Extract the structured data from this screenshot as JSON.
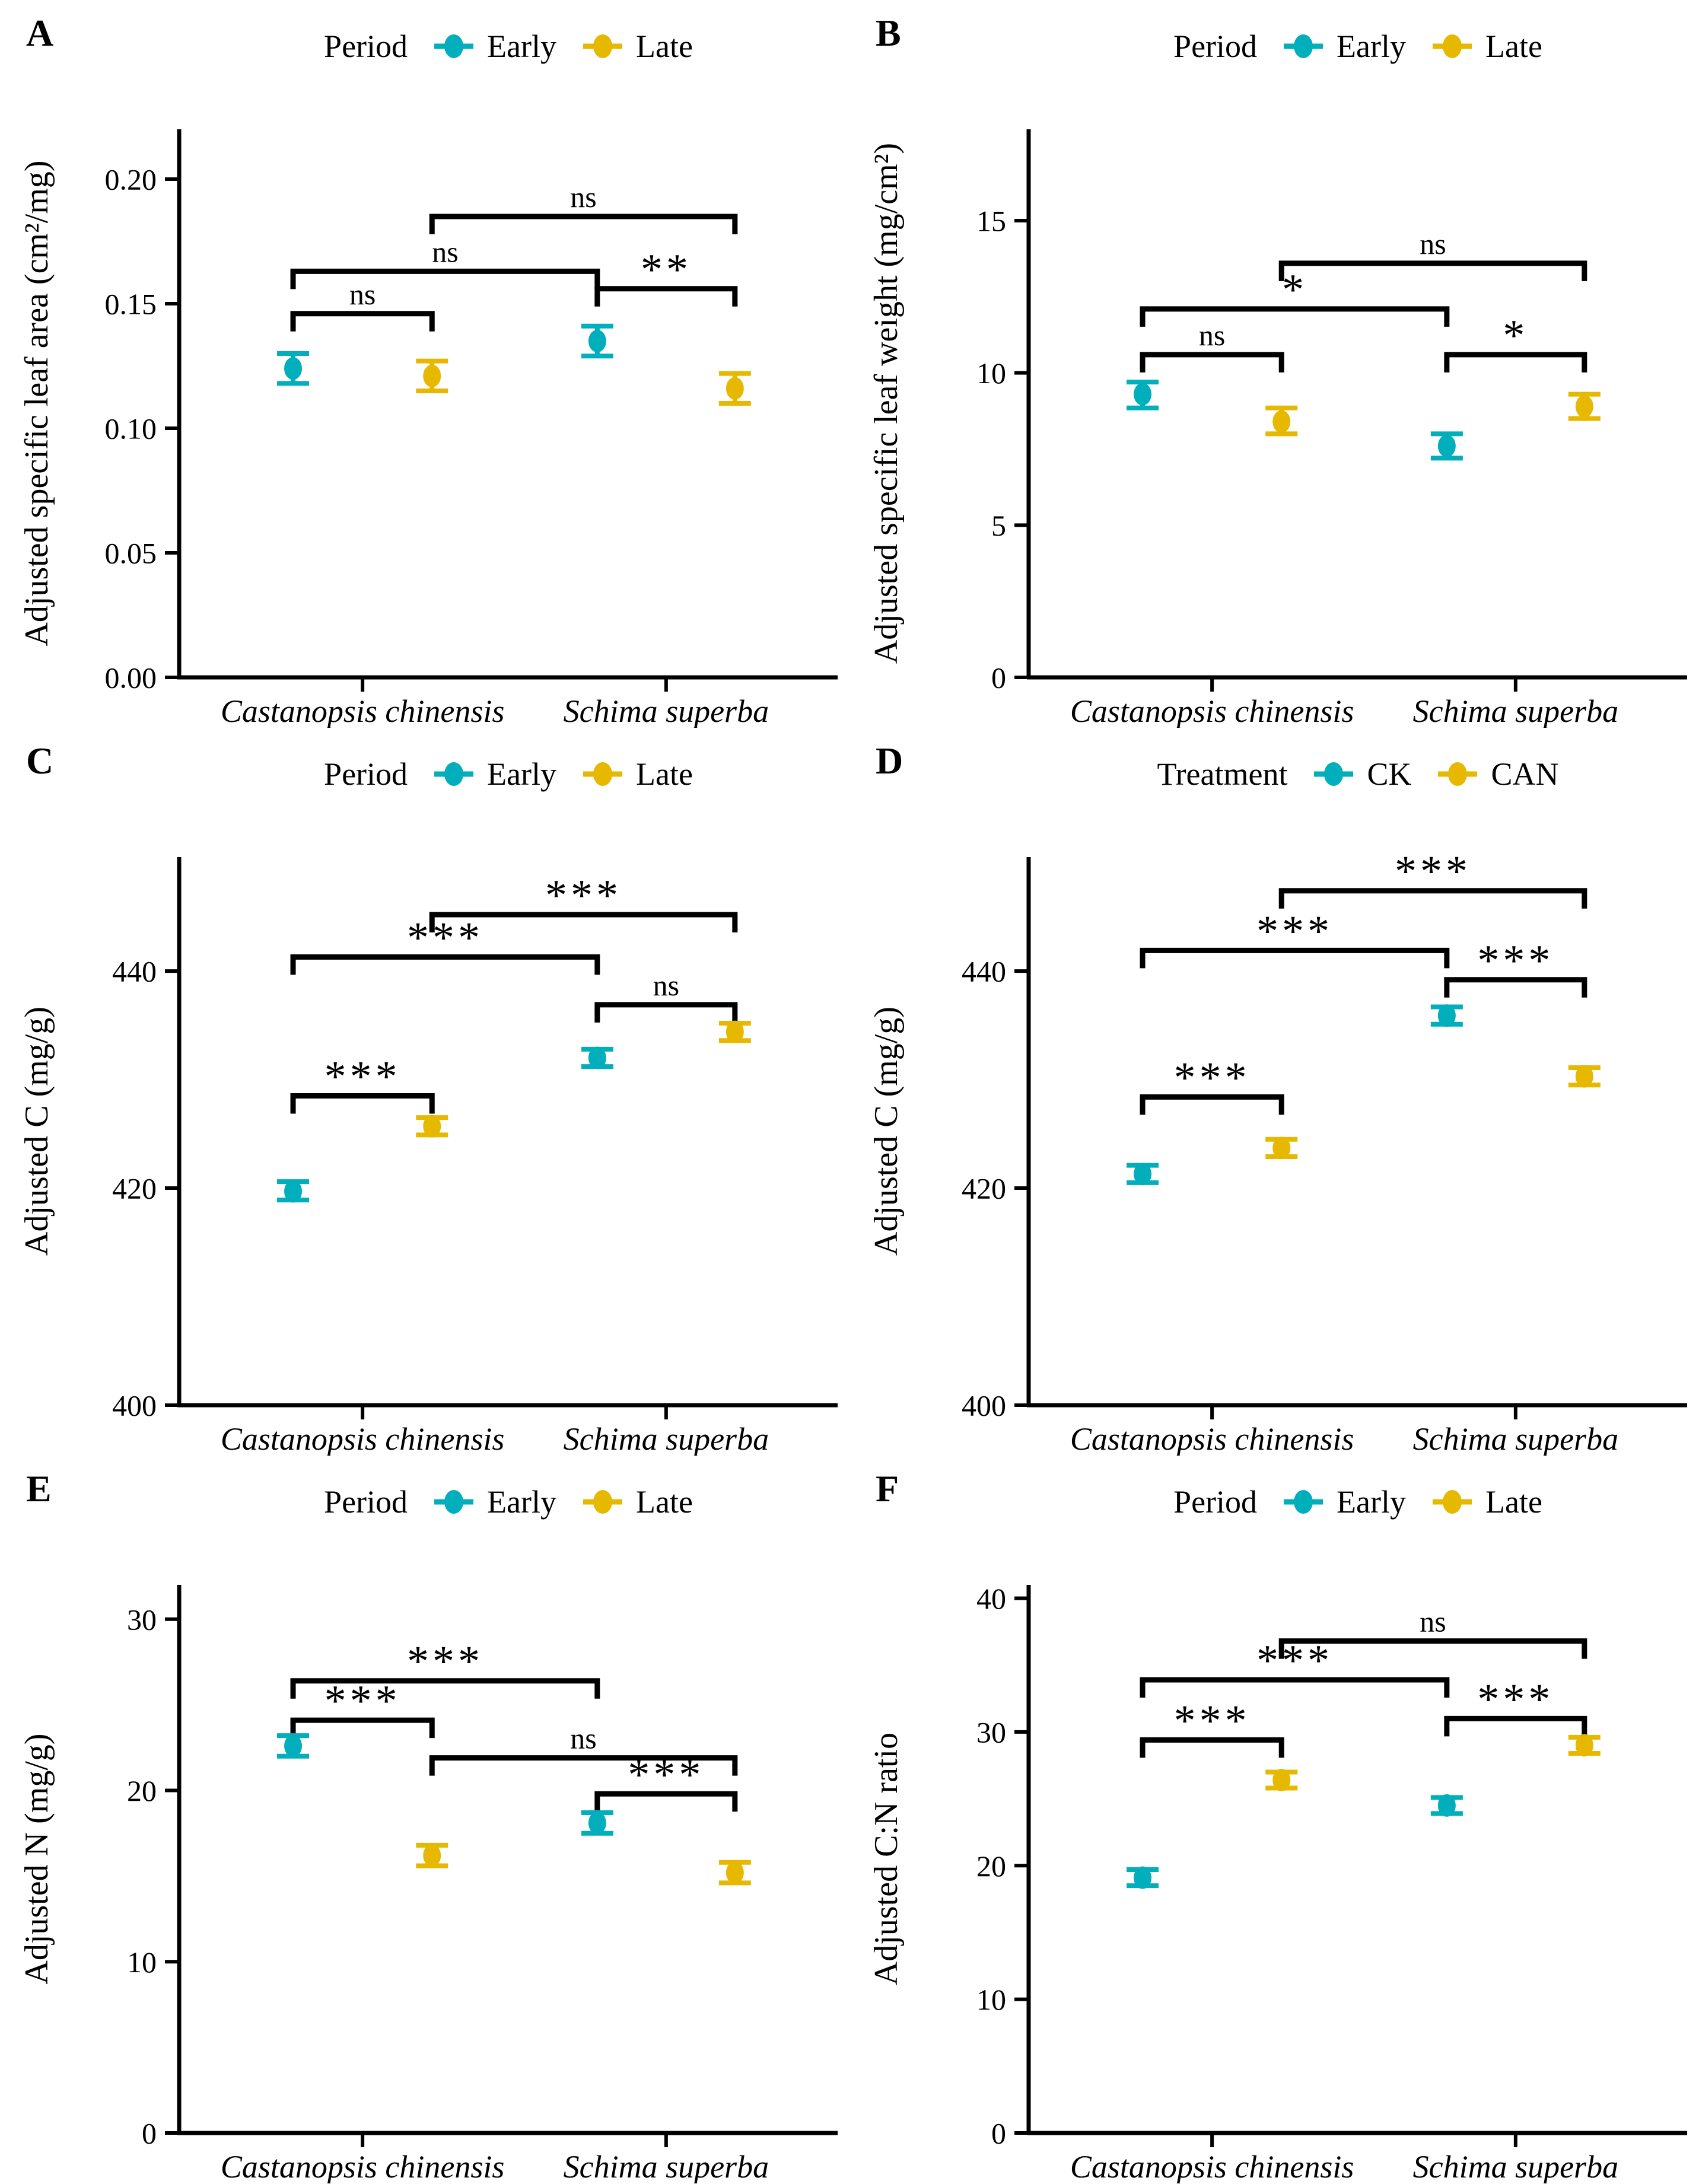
{
  "figure": {
    "background": "#ffffff",
    "panel_labels": [
      "A",
      "B",
      "C",
      "D",
      "E",
      "F"
    ],
    "x_axis_note": "two species groups, two dodged series per group"
  },
  "colors": {
    "teal": "#00AFBB",
    "gold": "#E7B800",
    "axis": "#000000",
    "text": "#000000"
  },
  "chart_data": [
    {
      "panel": "A",
      "type": "pointrange",
      "grid": false,
      "legend": {
        "title": "Period",
        "position": "top",
        "entries": [
          {
            "label": "Early",
            "color": "#00AFBB"
          },
          {
            "label": "Late",
            "color": "#E7B800"
          }
        ]
      },
      "ylabel": "Adjusted specific leaf area (cm²/mg)",
      "ylim": [
        0,
        0.22
      ],
      "yticks": [
        {
          "value": 0,
          "label": "0.00"
        },
        {
          "value": 0.05,
          "label": "0.05"
        },
        {
          "value": 0.1,
          "label": "0.10"
        },
        {
          "value": 0.15,
          "label": "0.15"
        },
        {
          "value": 0.2,
          "label": "0.20"
        }
      ],
      "categories": [
        "Castanopsis chinensis",
        "Schima superba"
      ],
      "series": [
        {
          "name": "Early",
          "color": "#00AFBB",
          "values": [
            {
              "category": "Castanopsis chinensis",
              "y": 0.124,
              "lo": 0.118,
              "hi": 0.13
            },
            {
              "category": "Schima superba",
              "y": 0.135,
              "lo": 0.129,
              "hi": 0.141
            }
          ]
        },
        {
          "name": "Late",
          "color": "#E7B800",
          "values": [
            {
              "category": "Castanopsis chinensis",
              "y": 0.121,
              "lo": 0.115,
              "hi": 0.127
            },
            {
              "category": "Schima superba",
              "y": 0.116,
              "lo": 0.11,
              "hi": 0.122
            }
          ]
        }
      ],
      "brackets": [
        {
          "slots": [
            0,
            1
          ],
          "y": 0.146,
          "label": "ns"
        },
        {
          "slots": [
            0,
            2
          ],
          "y": 0.163,
          "label": "ns"
        },
        {
          "slots": [
            2,
            3
          ],
          "y": 0.156,
          "label": "**"
        },
        {
          "slots": [
            1,
            3
          ],
          "y": 0.185,
          "label": "ns"
        }
      ]
    },
    {
      "panel": "B",
      "type": "pointrange",
      "grid": false,
      "legend": {
        "title": "Period",
        "position": "top",
        "entries": [
          {
            "label": "Early",
            "color": "#00AFBB"
          },
          {
            "label": "Late",
            "color": "#E7B800"
          }
        ]
      },
      "ylabel": "Adjusted specific leaf weight (mg/cm²)",
      "ylim": [
        0,
        18
      ],
      "yticks": [
        {
          "value": 0,
          "label": "0"
        },
        {
          "value": 5,
          "label": "5"
        },
        {
          "value": 10,
          "label": "10"
        },
        {
          "value": 15,
          "label": "15"
        }
      ],
      "categories": [
        "Castanopsis chinensis",
        "Schima superba"
      ],
      "series": [
        {
          "name": "Early",
          "color": "#00AFBB",
          "values": [
            {
              "category": "Castanopsis chinensis",
              "y": 9.3,
              "lo": 8.85,
              "hi": 9.7
            },
            {
              "category": "Schima superba",
              "y": 7.6,
              "lo": 7.2,
              "hi": 8.0
            }
          ]
        },
        {
          "name": "Late",
          "color": "#E7B800",
          "values": [
            {
              "category": "Castanopsis chinensis",
              "y": 8.4,
              "lo": 8.0,
              "hi": 8.85
            },
            {
              "category": "Schima superba",
              "y": 8.9,
              "lo": 8.5,
              "hi": 9.3
            }
          ]
        }
      ],
      "brackets": [
        {
          "slots": [
            0,
            1
          ],
          "y": 10.6,
          "label": "ns"
        },
        {
          "slots": [
            0,
            2
          ],
          "y": 12.1,
          "label": "*"
        },
        {
          "slots": [
            2,
            3
          ],
          "y": 10.6,
          "label": "*"
        },
        {
          "slots": [
            1,
            3
          ],
          "y": 13.6,
          "label": "ns"
        }
      ]
    },
    {
      "panel": "C",
      "type": "pointrange",
      "grid": false,
      "legend": {
        "title": "Period",
        "position": "top",
        "entries": [
          {
            "label": "Early",
            "color": "#00AFBB"
          },
          {
            "label": "Late",
            "color": "#E7B800"
          }
        ]
      },
      "ylabel": "Adjusted C (mg/g)",
      "ylim": [
        400,
        450.5
      ],
      "yticks": [
        {
          "value": 400,
          "label": "400"
        },
        {
          "value": 420,
          "label": "420"
        },
        {
          "value": 440,
          "label": "440"
        }
      ],
      "categories": [
        "Castanopsis chinensis",
        "Schima superba"
      ],
      "series": [
        {
          "name": "Early",
          "color": "#00AFBB",
          "values": [
            {
              "category": "Castanopsis chinensis",
              "y": 419.7,
              "lo": 418.9,
              "hi": 420.6
            },
            {
              "category": "Schima superba",
              "y": 432.0,
              "lo": 431.2,
              "hi": 432.8
            }
          ]
        },
        {
          "name": "Late",
          "color": "#E7B800",
          "values": [
            {
              "category": "Castanopsis chinensis",
              "y": 425.7,
              "lo": 424.9,
              "hi": 426.5
            },
            {
              "category": "Schima superba",
              "y": 434.4,
              "lo": 433.6,
              "hi": 435.2
            }
          ]
        }
      ],
      "brackets": [
        {
          "slots": [
            0,
            1
          ],
          "y": 428.5,
          "label": "***"
        },
        {
          "slots": [
            0,
            2
          ],
          "y": 441.3,
          "label": "***"
        },
        {
          "slots": [
            2,
            3
          ],
          "y": 436.9,
          "label": "ns"
        },
        {
          "slots": [
            1,
            3
          ],
          "y": 445.2,
          "label": "***"
        }
      ]
    },
    {
      "panel": "D",
      "type": "pointrange",
      "grid": false,
      "legend": {
        "title": "Treatment",
        "position": "top",
        "entries": [
          {
            "label": "CK",
            "color": "#00AFBB"
          },
          {
            "label": "CAN",
            "color": "#E7B800"
          }
        ]
      },
      "ylabel": "Adjusted C (mg/g)",
      "ylim": [
        400,
        450.5
      ],
      "yticks": [
        {
          "value": 400,
          "label": "400"
        },
        {
          "value": 420,
          "label": "420"
        },
        {
          "value": 440,
          "label": "440"
        }
      ],
      "categories": [
        "Castanopsis chinensis",
        "Schima superba"
      ],
      "series": [
        {
          "name": "CK",
          "color": "#00AFBB",
          "values": [
            {
              "category": "Castanopsis chinensis",
              "y": 421.3,
              "lo": 420.5,
              "hi": 422.1
            },
            {
              "category": "Schima superba",
              "y": 435.9,
              "lo": 435.1,
              "hi": 436.7
            }
          ]
        },
        {
          "name": "CAN",
          "color": "#E7B800",
          "values": [
            {
              "category": "Castanopsis chinensis",
              "y": 423.7,
              "lo": 422.9,
              "hi": 424.5
            },
            {
              "category": "Schima superba",
              "y": 430.3,
              "lo": 429.5,
              "hi": 431.1
            }
          ]
        }
      ],
      "brackets": [
        {
          "slots": [
            0,
            1
          ],
          "y": 428.4,
          "label": "***"
        },
        {
          "slots": [
            0,
            2
          ],
          "y": 441.9,
          "label": "***"
        },
        {
          "slots": [
            2,
            3
          ],
          "y": 439.2,
          "label": "***"
        },
        {
          "slots": [
            1,
            3
          ],
          "y": 447.4,
          "label": "***"
        }
      ]
    },
    {
      "panel": "E",
      "type": "pointrange",
      "grid": false,
      "legend": {
        "title": "Period",
        "position": "top",
        "entries": [
          {
            "label": "Early",
            "color": "#00AFBB"
          },
          {
            "label": "Late",
            "color": "#E7B800"
          }
        ]
      },
      "ylabel": "Adjusted N (mg/g)",
      "ylim": [
        0,
        32
      ],
      "yticks": [
        {
          "value": 0,
          "label": "0"
        },
        {
          "value": 10,
          "label": "10"
        },
        {
          "value": 20,
          "label": "20"
        },
        {
          "value": 30,
          "label": "30"
        }
      ],
      "categories": [
        "Castanopsis chinensis",
        "Schima superba"
      ],
      "series": [
        {
          "name": "Early",
          "color": "#00AFBB",
          "values": [
            {
              "category": "Castanopsis chinensis",
              "y": 22.6,
              "lo": 22.0,
              "hi": 23.2
            },
            {
              "category": "Schima superba",
              "y": 18.1,
              "lo": 17.5,
              "hi": 18.7
            }
          ]
        },
        {
          "name": "Late",
          "color": "#E7B800",
          "values": [
            {
              "category": "Castanopsis chinensis",
              "y": 16.2,
              "lo": 15.6,
              "hi": 16.8
            },
            {
              "category": "Schima superba",
              "y": 15.2,
              "lo": 14.6,
              "hi": 15.8
            }
          ]
        }
      ],
      "brackets": [
        {
          "slots": [
            0,
            1
          ],
          "y": 24.1,
          "label": "***"
        },
        {
          "slots": [
            0,
            2
          ],
          "y": 26.4,
          "label": "***"
        },
        {
          "slots": [
            2,
            3
          ],
          "y": 19.8,
          "label": "***"
        },
        {
          "slots": [
            1,
            3
          ],
          "y": 21.9,
          "label": "ns"
        }
      ]
    },
    {
      "panel": "F",
      "type": "pointrange",
      "grid": false,
      "legend": {
        "title": "Period",
        "position": "top",
        "entries": [
          {
            "label": "Early",
            "color": "#00AFBB"
          },
          {
            "label": "Late",
            "color": "#E7B800"
          }
        ]
      },
      "ylabel": "Adjusted C:N ratio",
      "ylim": [
        0,
        41
      ],
      "yticks": [
        {
          "value": 0,
          "label": "0"
        },
        {
          "value": 10,
          "label": "10"
        },
        {
          "value": 20,
          "label": "20"
        },
        {
          "value": 30,
          "label": "30"
        },
        {
          "value": 40,
          "label": "40"
        }
      ],
      "categories": [
        "Castanopsis chinensis",
        "Schima superba"
      ],
      "series": [
        {
          "name": "Early",
          "color": "#00AFBB",
          "values": [
            {
              "category": "Castanopsis chinensis",
              "y": 19.1,
              "lo": 18.5,
              "hi": 19.7
            },
            {
              "category": "Schima superba",
              "y": 24.5,
              "lo": 23.9,
              "hi": 25.1
            }
          ]
        },
        {
          "name": "Late",
          "color": "#E7B800",
          "values": [
            {
              "category": "Castanopsis chinensis",
              "y": 26.4,
              "lo": 25.8,
              "hi": 27.0
            },
            {
              "category": "Schima superba",
              "y": 29.0,
              "lo": 28.4,
              "hi": 29.6
            }
          ]
        }
      ],
      "brackets": [
        {
          "slots": [
            0,
            1
          ],
          "y": 29.4,
          "label": "***"
        },
        {
          "slots": [
            0,
            2
          ],
          "y": 33.9,
          "label": "***"
        },
        {
          "slots": [
            2,
            3
          ],
          "y": 31.0,
          "label": "***"
        },
        {
          "slots": [
            1,
            3
          ],
          "y": 36.8,
          "label": "ns"
        }
      ]
    }
  ]
}
